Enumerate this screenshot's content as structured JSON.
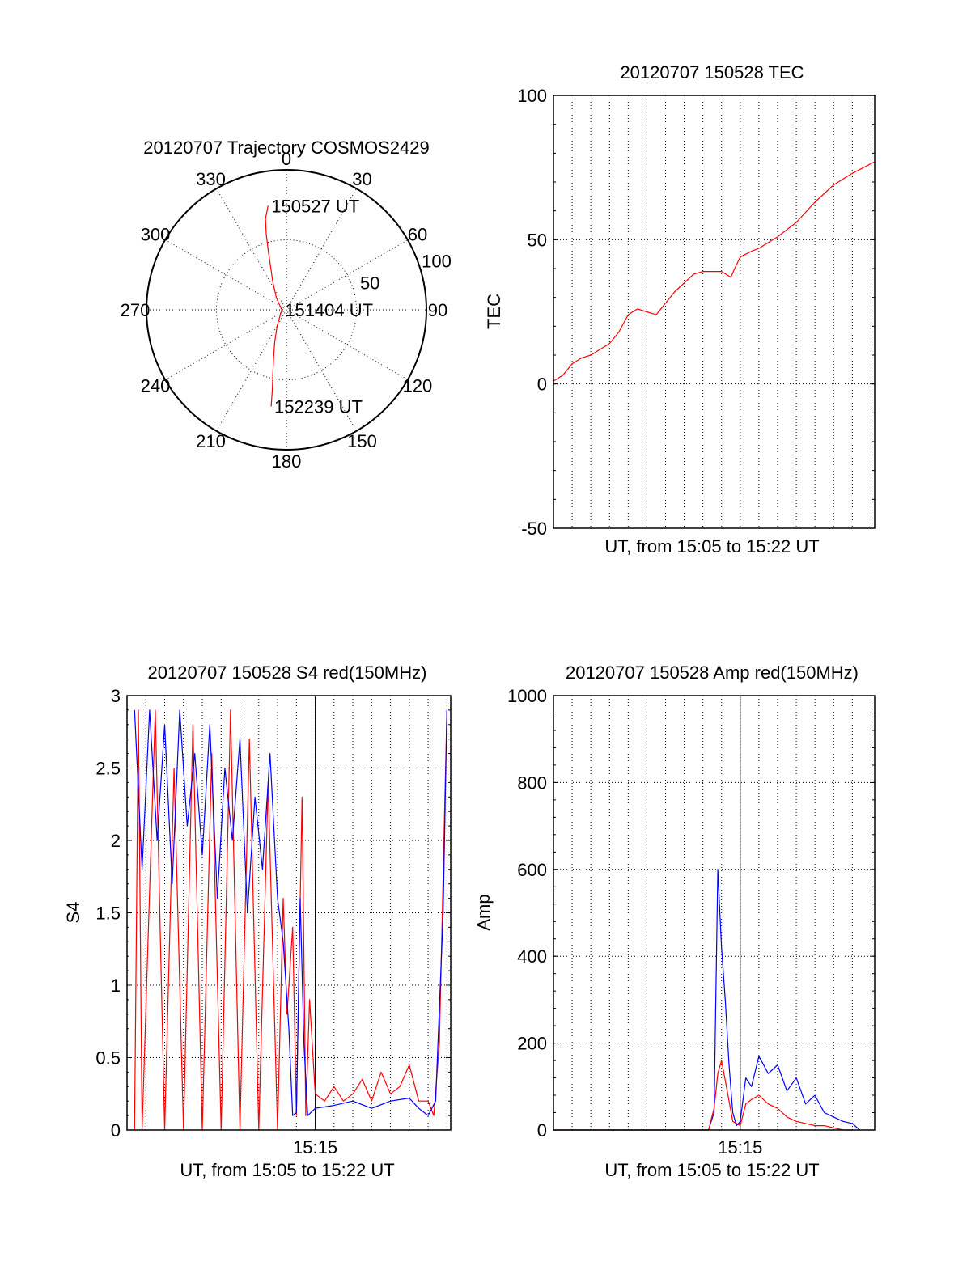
{
  "chart_data": [
    {
      "id": "trajectory",
      "type": "polar",
      "title": "20120707 Trajectory COSMOS2429",
      "angle_labels": [
        "0",
        "30",
        "60",
        "90",
        "120",
        "150",
        "180",
        "210",
        "240",
        "270",
        "300",
        "330"
      ],
      "radial_labels": [
        "50",
        "100"
      ],
      "series": [
        {
          "color": "#ff0000",
          "points": [
            [
              -10,
              68
            ],
            [
              -13,
              60
            ],
            [
              -15,
              50
            ],
            [
              -17,
              40
            ],
            [
              -20,
              30
            ],
            [
              -26,
              20
            ],
            [
              -40,
              10
            ],
            [
              -90,
              3
            ],
            [
              -150,
              12
            ],
            [
              -160,
              22
            ],
            [
              -165,
              32
            ],
            [
              -168,
              42
            ],
            [
              -170,
              52
            ],
            [
              -171,
              63
            ]
          ]
        }
      ],
      "annotations": [
        {
          "text": "150527 UT",
          "azimuth": -10,
          "zenith": 68
        },
        {
          "text": "151404 UT",
          "azimuth": -90,
          "zenith": 3
        },
        {
          "text": "152239 UT",
          "azimuth": -171,
          "zenith": 63
        }
      ]
    },
    {
      "id": "tec",
      "type": "line",
      "title": "20120707 150528 TEC",
      "xlabel": "UT, from 15:05 to 15:22 UT",
      "ylabel": "TEC",
      "xlim": [
        0,
        17.2
      ],
      "ylim": [
        -50,
        100
      ],
      "yticks": [
        -50,
        0,
        50,
        100
      ],
      "series": [
        {
          "color": "#ff0000",
          "x": [
            0,
            0.5,
            1.0,
            1.5,
            2.0,
            2.5,
            3.0,
            3.5,
            4.0,
            4.5,
            5.0,
            5.5,
            6.0,
            6.5,
            7.0,
            7.5,
            8.0,
            8.5,
            9.0,
            9.5,
            9.7,
            10.0,
            10.3,
            10.6,
            11.0,
            12.0,
            13.0,
            14.0,
            15.0,
            16.0,
            17.2
          ],
          "y": [
            1,
            3,
            7,
            9,
            10,
            12,
            14,
            18,
            24,
            26,
            25,
            24,
            28,
            32,
            35,
            38,
            39,
            39,
            39,
            37,
            40,
            44,
            45,
            46,
            47,
            51,
            56,
            63,
            69,
            73,
            77
          ]
        }
      ]
    },
    {
      "id": "s4",
      "type": "line",
      "title": "20120707 150528 S4 red(150MHz)",
      "xlabel": "UT, from 15:05 to 15:22 UT",
      "ylabel": "S4",
      "xlim": [
        0,
        17.2
      ],
      "ylim": [
        0,
        3
      ],
      "yticks": [
        "0",
        "0.5",
        "1",
        "1.5",
        "2",
        "2.5",
        "3"
      ],
      "xtick_label": "15:15",
      "xtick_value": 10,
      "series": [
        {
          "color": "#ff0000",
          "x": [
            0.4,
            0.6,
            0.8,
            1.5,
            2.0,
            2.5,
            3.0,
            3.5,
            4.0,
            4.5,
            5.0,
            5.5,
            6.0,
            6.5,
            7.0,
            7.5,
            8.0,
            8.3,
            8.5,
            8.8,
            9.0,
            9.3,
            9.5,
            9.7,
            10.0,
            10.5,
            11.0,
            11.5,
            12.0,
            12.5,
            13.0,
            13.5,
            14.0,
            14.5,
            15.0,
            15.5,
            16.0,
            16.3,
            16.6,
            17.0
          ],
          "y": [
            0,
            2.9,
            0,
            2.9,
            0,
            2.5,
            0,
            2.8,
            0,
            2.6,
            0,
            2.9,
            0,
            2.7,
            0,
            2.4,
            0,
            1.6,
            0.8,
            1.4,
            0.1,
            2.3,
            0.1,
            0.9,
            0.25,
            0.2,
            0.3,
            0.2,
            0.25,
            0.35,
            0.2,
            0.4,
            0.25,
            0.3,
            0.45,
            0.2,
            0.2,
            0.1,
            0.6,
            2.9
          ]
        },
        {
          "color": "#0000ff",
          "x": [
            0.4,
            0.8,
            1.2,
            1.6,
            2.0,
            2.4,
            2.8,
            3.2,
            3.6,
            4.0,
            4.4,
            4.8,
            5.2,
            5.6,
            6.0,
            6.4,
            6.8,
            7.2,
            7.6,
            8.0,
            8.3,
            8.6,
            8.8,
            9.0,
            9.2,
            9.4,
            9.6,
            10.0,
            11.0,
            12.0,
            13.0,
            14.0,
            15.0,
            15.5,
            16.0,
            16.4,
            16.8,
            17.0
          ],
          "y": [
            2.9,
            1.8,
            2.9,
            2.0,
            2.8,
            1.7,
            2.9,
            2.1,
            2.6,
            1.9,
            2.8,
            1.6,
            2.5,
            2.0,
            2.7,
            1.5,
            2.3,
            1.8,
            2.6,
            1.6,
            1.3,
            0.7,
            0.1,
            0.12,
            1.6,
            0.6,
            0.1,
            0.15,
            0.17,
            0.2,
            0.15,
            0.2,
            0.22,
            0.15,
            0.1,
            0.2,
            1.5,
            2.9
          ]
        }
      ]
    },
    {
      "id": "amp",
      "type": "line",
      "title": "20120707 150528 Amp red(150MHz)",
      "xlabel": "UT, from 15:05 to 15:22 UT",
      "ylabel": "Amp",
      "xlim": [
        0,
        17.2
      ],
      "ylim": [
        0,
        1000
      ],
      "yticks": [
        "0",
        "200",
        "400",
        "600",
        "800",
        "1000"
      ],
      "xtick_label": "15:15",
      "xtick_value": 10,
      "series": [
        {
          "color": "#0000ff",
          "x": [
            0,
            8.3,
            8.6,
            8.8,
            9.0,
            9.2,
            9.4,
            9.6,
            9.8,
            10.0,
            10.3,
            10.6,
            11.0,
            11.5,
            12.0,
            12.5,
            13.0,
            13.5,
            14.0,
            14.5,
            15.0,
            15.5,
            16.0,
            16.4
          ],
          "y": [
            0,
            0,
            40,
            600,
            420,
            300,
            150,
            40,
            10,
            20,
            120,
            100,
            170,
            130,
            150,
            90,
            120,
            60,
            80,
            40,
            30,
            20,
            15,
            0
          ]
        },
        {
          "color": "#ff0000",
          "x": [
            0,
            8.3,
            8.6,
            8.8,
            9.0,
            9.3,
            9.6,
            10.0,
            10.3,
            10.6,
            11.0,
            11.5,
            12.0,
            12.5,
            13.0,
            13.5,
            14.0,
            14.5,
            15.0,
            15.5,
            16.0
          ],
          "y": [
            0,
            0,
            50,
            130,
            160,
            90,
            20,
            10,
            60,
            70,
            80,
            60,
            50,
            30,
            20,
            15,
            10,
            10,
            5,
            0,
            0
          ]
        }
      ]
    }
  ]
}
